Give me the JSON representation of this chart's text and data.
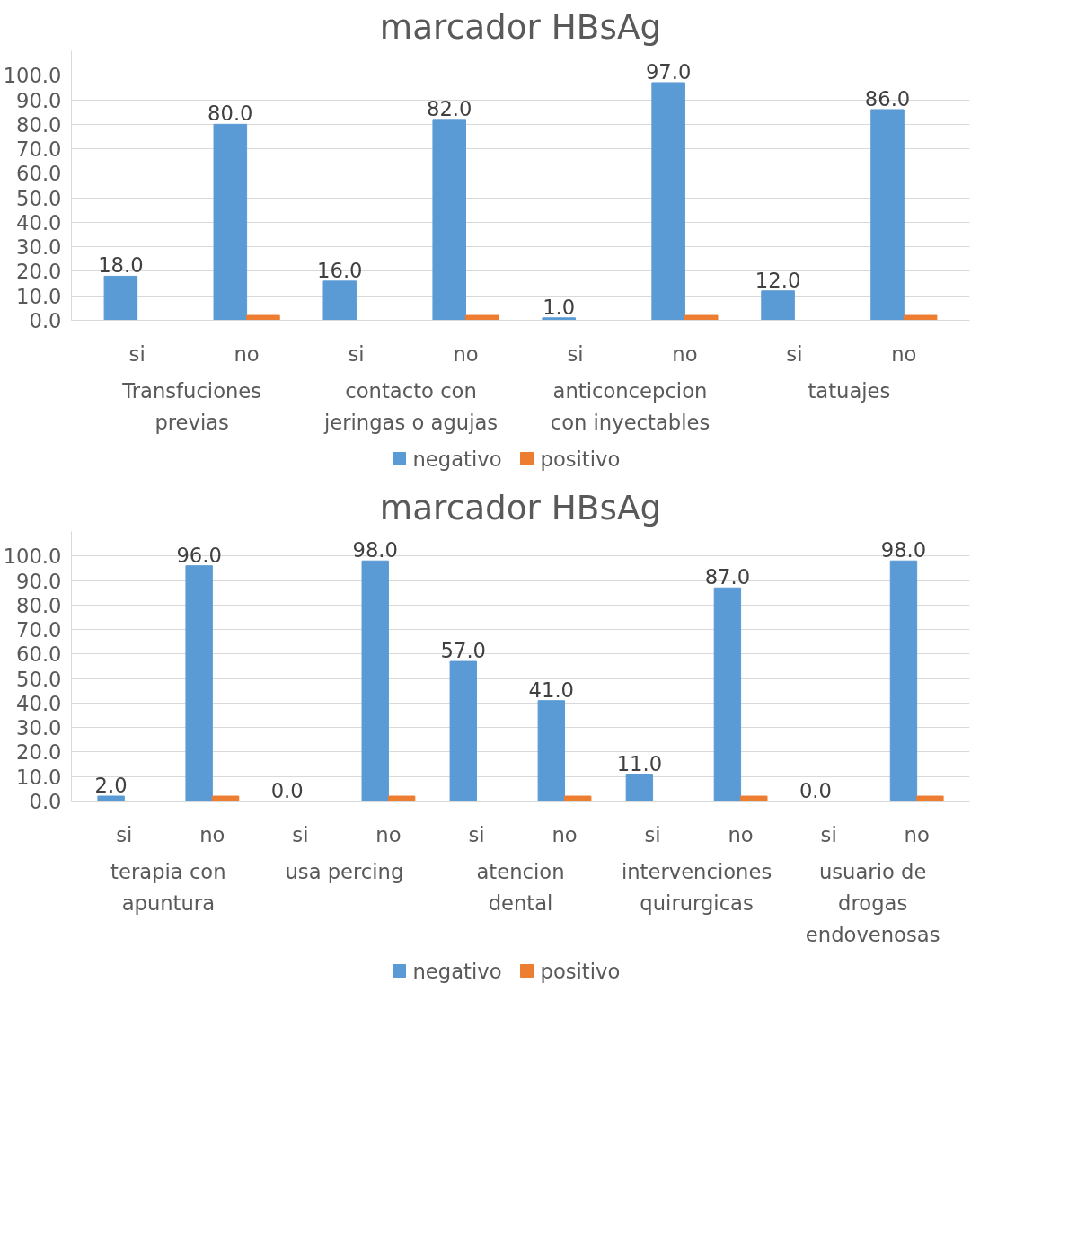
{
  "chart_data": [
    {
      "type": "bar",
      "title": "marcador HBsAg",
      "categories": [
        "si",
        "no",
        "si",
        "no",
        "si",
        "no",
        "si",
        "no"
      ],
      "annotations": [
        "Transfuciones\nprevias",
        "contacto con\njeringas o agujas",
        "anticoncepcion\ncon inyectables",
        "tatuajes"
      ],
      "series": [
        {
          "name": "negativo",
          "color": "#5b9bd5",
          "values": [
            18,
            80,
            16,
            82,
            1,
            97,
            12,
            86
          ],
          "value_labels": [
            "18.0",
            "80.0",
            "16.0",
            "82.0",
            "1.0",
            "97.0",
            "12.0",
            "86.0"
          ]
        },
        {
          "name": "positivo",
          "color": "#ed7d31",
          "values": [
            0,
            2,
            0,
            2,
            0,
            2,
            0,
            2
          ]
        }
      ],
      "ylim": [
        0,
        110
      ],
      "yticks": [
        {
          "value": 0,
          "label": "0.0"
        },
        {
          "value": 10,
          "label": "10.0"
        },
        {
          "value": 20,
          "label": "20.0"
        },
        {
          "value": 30,
          "label": "30.0"
        },
        {
          "value": 40,
          "label": "40.0"
        },
        {
          "value": 50,
          "label": "50.0"
        },
        {
          "value": 60,
          "label": "60.0"
        },
        {
          "value": 70,
          "label": "70.0"
        },
        {
          "value": 80,
          "label": "80.0"
        },
        {
          "value": 90,
          "label": "90.0"
        },
        {
          "value": 100,
          "label": "100.0"
        }
      ],
      "grid": "y",
      "legend": "bottom"
    },
    {
      "type": "bar",
      "title": "marcador HBsAg",
      "categories": [
        "si",
        "no",
        "si",
        "no",
        "si",
        "no",
        "si",
        "no",
        "si",
        "no"
      ],
      "annotations": [
        "terapia con\napuntura",
        "usa percing",
        "atencion\ndental",
        "intervenciones\nquirurgicas",
        "usuario de\ndrogas\nendovenosas"
      ],
      "series": [
        {
          "name": "negativo",
          "color": "#5b9bd5",
          "values": [
            2,
            96,
            0,
            98,
            57,
            41,
            11,
            87,
            0,
            98
          ],
          "value_labels": [
            "2.0",
            "96.0",
            "0.0",
            "98.0",
            "57.0",
            "41.0",
            "11.0",
            "87.0",
            "0.0",
            "98.0"
          ]
        },
        {
          "name": "positivo",
          "color": "#ed7d31",
          "values": [
            0,
            2,
            0,
            2,
            0,
            2,
            0,
            2,
            0,
            2
          ]
        }
      ],
      "ylim": [
        0,
        110
      ],
      "yticks": [
        {
          "value": 0,
          "label": "0.0"
        },
        {
          "value": 10,
          "label": "10.0"
        },
        {
          "value": 20,
          "label": "20.0"
        },
        {
          "value": 30,
          "label": "30.0"
        },
        {
          "value": 40,
          "label": "40.0"
        },
        {
          "value": 50,
          "label": "50.0"
        },
        {
          "value": 60,
          "label": "60.0"
        },
        {
          "value": 70,
          "label": "70.0"
        },
        {
          "value": 80,
          "label": "80.0"
        },
        {
          "value": 90,
          "label": "90.0"
        },
        {
          "value": 100,
          "label": "100.0"
        }
      ],
      "grid": "y",
      "legend": "bottom"
    }
  ]
}
